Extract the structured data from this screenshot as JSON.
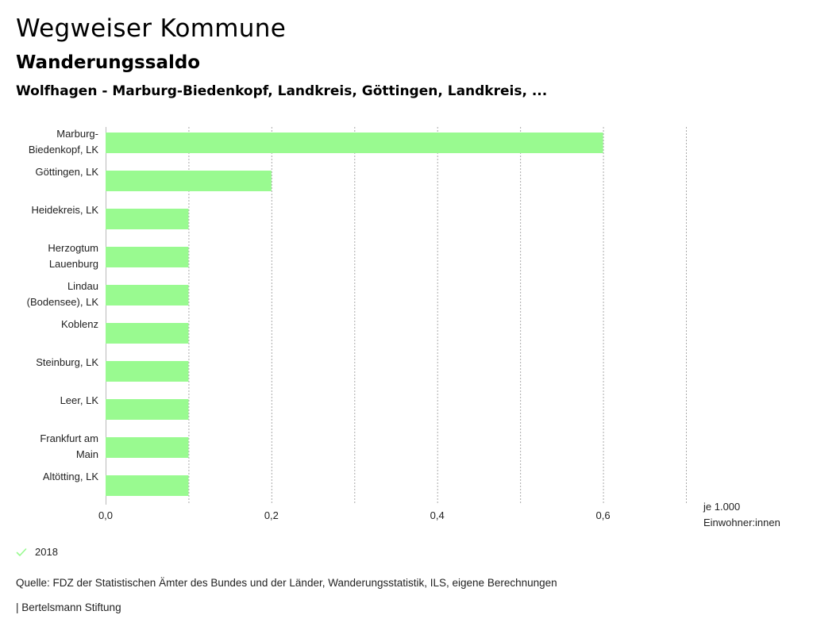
{
  "header": {
    "title": "Wegweiser Kommune",
    "subtitle": "Wanderungssaldo",
    "subsubtitle": "Wolfhagen - Marburg-Biedenkopf, Landkreis, Göttingen, Landkreis, ..."
  },
  "chart_data": {
    "type": "bar",
    "orientation": "horizontal",
    "categories": [
      [
        "Marburg-",
        "Biedenkopf, LK"
      ],
      [
        "Göttingen, LK"
      ],
      [
        "Heidekreis, LK"
      ],
      [
        "Herzogtum",
        "Lauenburg"
      ],
      [
        "Lindau",
        "(Bodensee), LK"
      ],
      [
        "Koblenz"
      ],
      [
        "Steinburg, LK"
      ],
      [
        "Leer, LK"
      ],
      [
        "Frankfurt am",
        "Main"
      ],
      [
        "Altötting, LK"
      ]
    ],
    "series": [
      {
        "name": "2018",
        "values": [
          0.6,
          0.2,
          0.1,
          0.1,
          0.1,
          0.1,
          0.1,
          0.1,
          0.1,
          0.1
        ]
      }
    ],
    "xlim": [
      0,
      0.7
    ],
    "xticks": [
      0,
      0.2,
      0.4,
      0.6
    ],
    "xtick_labels": [
      "0,0",
      "0,2",
      "0,4",
      "0,6"
    ],
    "gridlines": [
      0,
      0.1,
      0.2,
      0.3,
      0.4,
      0.5,
      0.6,
      0.7
    ],
    "unit_label": [
      "je 1.000",
      "Einwohner:innen"
    ],
    "bar_color": "#99fa90",
    "grid": true
  },
  "legend": {
    "label": "2018",
    "color": "#99fa90"
  },
  "source": "Quelle: FDZ der Statistischen Ämter des Bundes und der Länder, Wanderungsstatistik, ILS, eigene Berechnungen",
  "footer": "| Bertelsmann Stiftung"
}
